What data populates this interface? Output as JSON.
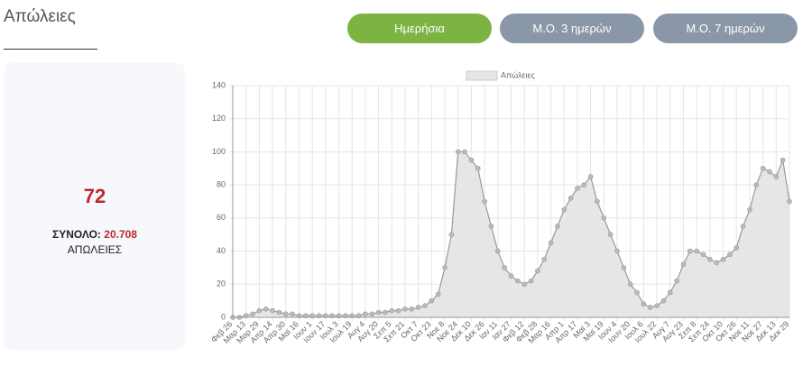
{
  "header": {
    "title": "Απώλειες"
  },
  "buttons": [
    "Ημερήσια",
    "Μ.Ο. 3 ημερών",
    "Μ.Ο. 7 ημερών"
  ],
  "summary": {
    "value": 72,
    "total_label": "ΣΥΝΟΛΟ:",
    "total_value": "20.708",
    "unit": "ΑΠΩΛΕΙΕΣ"
  },
  "chart_data": {
    "type": "line",
    "categories": [
      "Φεβ 26",
      null,
      "Μαρ 13",
      null,
      "Μαρ 29",
      null,
      "Απρ 14",
      null,
      "Απρ 30",
      null,
      "Μαϊ 16",
      null,
      "Ιουν 1",
      null,
      "Ιουν 17",
      null,
      "Ιουλ 3",
      null,
      "Ιουλ 19",
      null,
      "Αυγ 4",
      null,
      "Αυγ 20",
      null,
      "Σεπ 5",
      null,
      "Σεπ 21",
      null,
      "Οκτ 7",
      null,
      "Οκτ 23",
      null,
      "Νοε 8",
      null,
      "Νοε 24",
      null,
      "Δεκ 10",
      null,
      "Δεκ 26",
      null,
      "Ιαν 11",
      null,
      "Ιαν 27",
      null,
      "Φεβ 12",
      null,
      "Φεβ 28",
      null,
      "Μαρ 16",
      null,
      "Απρ 1",
      null,
      "Απρ 17",
      null,
      "Μαϊ 3",
      null,
      "Μαϊ 19",
      null,
      "Ιουν 4",
      null,
      "Ιουν 20",
      null,
      "Ιουλ 6",
      null,
      "Ιουλ 22",
      null,
      "Αυγ 7",
      null,
      "Αυγ 23",
      null,
      "Σεπ 8",
      null,
      "Σεπ 24",
      null,
      "Οκτ 10",
      null,
      "Οκτ 26",
      null,
      "Νοε 11",
      null,
      "Νοε 27",
      null,
      "Δεκ 13",
      null,
      "Δεκ 29"
    ],
    "series": [
      {
        "name": "Απώλειες",
        "color": "#999999",
        "fill": "#e6e6e6",
        "values": [
          0,
          0,
          1,
          2,
          4,
          5,
          4,
          3,
          2,
          2,
          1,
          1,
          1,
          1,
          1,
          1,
          1,
          1,
          1,
          1,
          2,
          2,
          3,
          3,
          4,
          4,
          5,
          5,
          6,
          7,
          10,
          14,
          30,
          50,
          100,
          100,
          95,
          90,
          70,
          55,
          40,
          30,
          25,
          22,
          20,
          22,
          28,
          35,
          45,
          55,
          65,
          72,
          78,
          80,
          85,
          70,
          60,
          50,
          40,
          30,
          20,
          15,
          8,
          6,
          7,
          10,
          15,
          22,
          32,
          40,
          40,
          38,
          35,
          33,
          35,
          38,
          42,
          55,
          65,
          80,
          90,
          88,
          85,
          95,
          70
        ]
      }
    ],
    "ylim": [
      0,
      140
    ],
    "yticks": [
      0,
      20,
      40,
      60,
      80,
      100,
      120,
      140
    ],
    "grid": true,
    "legend": "top"
  }
}
